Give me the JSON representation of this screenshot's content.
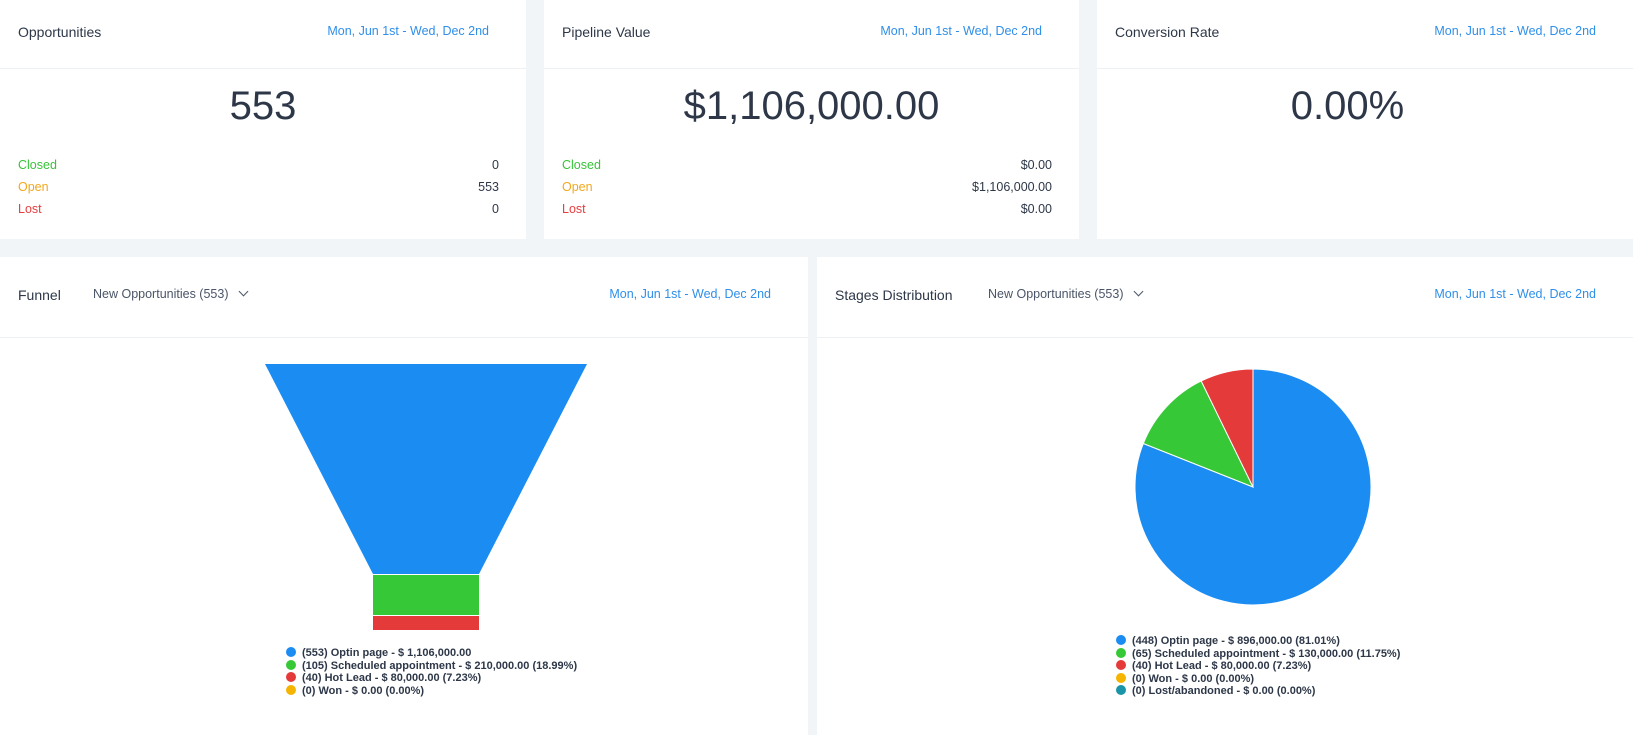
{
  "opportunities": {
    "title": "Opportunities",
    "date_range": "Mon, Jun 1st - Wed, Dec 2nd",
    "total": "553",
    "rows": [
      {
        "label": "Closed",
        "value": "0"
      },
      {
        "label": "Open",
        "value": "553"
      },
      {
        "label": "Lost",
        "value": "0"
      }
    ]
  },
  "pipeline": {
    "title": "Pipeline Value",
    "date_range": "Mon, Jun 1st - Wed, Dec 2nd",
    "total": "$1,106,000.00",
    "rows": [
      {
        "label": "Closed",
        "value": "$0.00"
      },
      {
        "label": "Open",
        "value": "$1,106,000.00"
      },
      {
        "label": "Lost",
        "value": "$0.00"
      }
    ]
  },
  "conversion": {
    "title": "Conversion Rate",
    "date_range": "Mon, Jun 1st - Wed, Dec 2nd",
    "total": "0.00%"
  },
  "funnel": {
    "title": "Funnel",
    "filter": "New Opportunities (553)",
    "date_range": "Mon, Jun 1st - Wed, Dec 2nd"
  },
  "stages": {
    "title": "Stages Distribution",
    "filter": "New Opportunities (553)",
    "date_range": "Mon, Jun 1st - Wed, Dec 2nd"
  },
  "colors": {
    "blue": "#1b8cf2",
    "green": "#37c837",
    "red": "#e53a3a",
    "yellow": "#f5b400",
    "teal": "#1a94a8",
    "link": "#2f8fe9"
  },
  "chart_data": [
    {
      "type": "funnel",
      "stages": [
        {
          "name": "Optin page",
          "count": 553,
          "value": 1106000,
          "pct": 100,
          "color": "#1b8cf2",
          "legend": "(553) Optin page - $ 1,106,000.00"
        },
        {
          "name": "Scheduled appointment",
          "count": 105,
          "value": 210000,
          "pct": 18.99,
          "color": "#37c837",
          "legend": "(105) Scheduled appointment - $ 210,000.00 (18.99%)"
        },
        {
          "name": "Hot Lead",
          "count": 40,
          "value": 80000,
          "pct": 7.23,
          "color": "#e53a3a",
          "legend": "(40) Hot Lead - $ 80,000.00 (7.23%)"
        },
        {
          "name": "Won",
          "count": 0,
          "value": 0,
          "pct": 0,
          "color": "#f5b400",
          "legend": "(0) Won - $ 0.00 (0.00%)"
        }
      ]
    },
    {
      "type": "pie",
      "slices": [
        {
          "name": "Optin page",
          "count": 448,
          "value": 896000,
          "pct": 81.01,
          "color": "#1b8cf2",
          "legend": "(448) Optin page - $ 896,000.00 (81.01%)"
        },
        {
          "name": "Scheduled appointment",
          "count": 65,
          "value": 130000,
          "pct": 11.75,
          "color": "#37c837",
          "legend": "(65) Scheduled appointment - $ 130,000.00 (11.75%)"
        },
        {
          "name": "Hot Lead",
          "count": 40,
          "value": 80000,
          "pct": 7.23,
          "color": "#e53a3a",
          "legend": "(40) Hot Lead - $ 80,000.00 (7.23%)"
        },
        {
          "name": "Won",
          "count": 0,
          "value": 0,
          "pct": 0,
          "color": "#f5b400",
          "legend": "(0) Won - $ 0.00 (0.00%)"
        },
        {
          "name": "Lost/abandoned",
          "count": 0,
          "value": 0,
          "pct": 0,
          "color": "#1a94a8",
          "legend": "(0) Lost/abandoned - $ 0.00 (0.00%)"
        }
      ]
    }
  ]
}
